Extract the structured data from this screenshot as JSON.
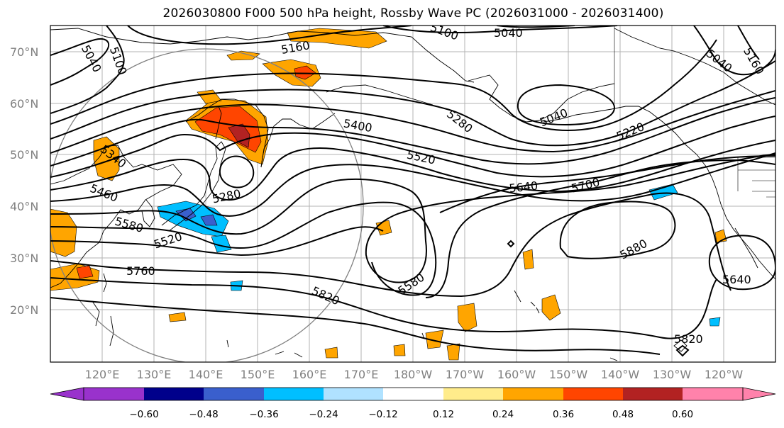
{
  "title": "2026030800 F000 500 hPa height, Rossby Wave PC (2026031000 - 2026031400)",
  "latitude_labels": [
    "70°N",
    "60°N",
    "50°N",
    "40°N",
    "30°N",
    "20°N"
  ],
  "longitude_labels": [
    "120°E",
    "130°E",
    "140°E",
    "150°E",
    "160°E",
    "170°E",
    "180°W",
    "170°W",
    "160°W",
    "150°W",
    "140°W",
    "130°W",
    "120°W"
  ],
  "contour_labels": [
    "5040",
    "5100",
    "5160",
    "5100",
    "5040",
    "5040",
    "5160",
    "5340",
    "5400",
    "5280",
    "5040",
    "5220",
    "5460",
    "5280",
    "5520",
    "5580",
    "5640",
    "5700",
    "5520",
    "5760",
    "5580",
    "5880",
    "5820",
    "5640",
    "5820"
  ],
  "colorbar": {
    "ticks": [
      "−0.60",
      "−0.48",
      "−0.36",
      "−0.24",
      "−0.12",
      "0.12",
      "0.24",
      "0.36",
      "0.48",
      "0.60"
    ],
    "colors": [
      "#9932cc",
      "#00008b",
      "#3a5fcd",
      "#00bfff",
      "#b0e2ff",
      "#ffffff",
      "#ffec8b",
      "#ffa500",
      "#ff4500",
      "#b22222",
      "#ff82ab"
    ]
  }
}
